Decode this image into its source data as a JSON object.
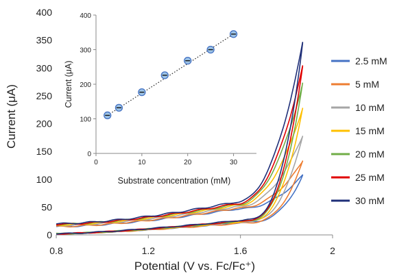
{
  "chart_data": [
    {
      "type": "line",
      "xlabel": "Potential (V vs. Fc/Fc⁺)",
      "ylabel": "Current (μA)",
      "xlim": [
        0.8,
        2.0
      ],
      "ylim": [
        0,
        400
      ],
      "xticks": [
        "0.8",
        "1.2",
        "1.6",
        "2"
      ],
      "yticks": [
        "0",
        "50",
        "100",
        "150",
        "200",
        "250",
        "300",
        "350",
        "400"
      ],
      "grid": false,
      "legend_position": "right",
      "series": [
        {
          "name": "2.5 mM",
          "color": "#4472C4",
          "peak": 107,
          "baseline_low": 15,
          "baseline_high": 60,
          "return_high": 42
        },
        {
          "name": "5 mM",
          "color": "#ED7D31",
          "peak": 132,
          "baseline_low": 15,
          "baseline_high": 62,
          "return_high": 40
        },
        {
          "name": "10 mM",
          "color": "#A5A5A5",
          "peak": 178,
          "baseline_low": 17,
          "baseline_high": 65,
          "return_high": 44
        },
        {
          "name": "15 mM",
          "color": "#FFC000",
          "peak": 228,
          "baseline_low": 18,
          "baseline_high": 68,
          "return_high": 45
        },
        {
          "name": "20 mM",
          "color": "#70AD47",
          "peak": 272,
          "baseline_low": 19,
          "baseline_high": 70,
          "return_high": 47
        },
        {
          "name": "25 mM",
          "color": "#E00000",
          "peak": 303,
          "baseline_low": 19,
          "baseline_high": 72,
          "return_high": 48
        },
        {
          "name": "30 mM",
          "color": "#1F2F78",
          "peak": 345,
          "baseline_low": 20,
          "baseline_high": 76,
          "return_high": 50
        }
      ],
      "cv_shape": {
        "x_start": 0.8,
        "x_end": 1.87,
        "onset": 1.58,
        "return_start": 0.8,
        "return_low": 2
      }
    },
    {
      "type": "scatter",
      "xlabel": "Substrate concentration (mM)",
      "ylabel": "Current (μA)",
      "xlim": [
        0,
        35
      ],
      "ylim": [
        0,
        400
      ],
      "xticks": [
        "0",
        "10",
        "20",
        "30"
      ],
      "yticks": [
        "0",
        "100",
        "200",
        "300",
        "400"
      ],
      "trendline": "dotted",
      "points": [
        {
          "x": 2.5,
          "y": 110
        },
        {
          "x": 5,
          "y": 132
        },
        {
          "x": 10,
          "y": 177
        },
        {
          "x": 15,
          "y": 226
        },
        {
          "x": 20,
          "y": 268
        },
        {
          "x": 25,
          "y": 300
        },
        {
          "x": 30,
          "y": 345
        }
      ],
      "marker_color": "#4472C4"
    }
  ]
}
